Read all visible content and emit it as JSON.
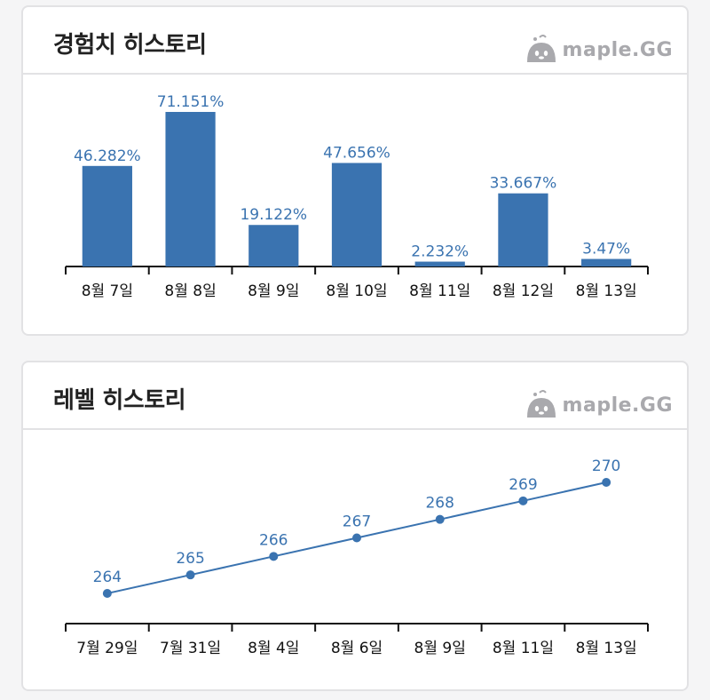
{
  "brand": {
    "name": "maple.GG",
    "icon": "slime-logo-icon"
  },
  "colors": {
    "bar": "#3a73b0",
    "line": "#3a73b0",
    "label": "#3a73b0",
    "axis": "#111111"
  },
  "exp_card": {
    "title": "경험치 히스토리"
  },
  "level_card": {
    "title": "레벨 히스토리"
  },
  "chart_data": [
    {
      "type": "bar",
      "title": "경험치 히스토리",
      "categories": [
        "8월 7일",
        "8월 8일",
        "8월 9일",
        "8월 10일",
        "8월 11일",
        "8월 12일",
        "8월 13일"
      ],
      "values": [
        46.282,
        71.151,
        19.122,
        47.656,
        2.232,
        33.667,
        3.47
      ],
      "labels": [
        "46.282%",
        "71.151%",
        "19.122%",
        "47.656%",
        "2.232%",
        "33.667%",
        "3.47%"
      ],
      "ylim": [
        0,
        71.151
      ],
      "grid": false
    },
    {
      "type": "line",
      "title": "레벨 히스토리",
      "categories": [
        "7월 29일",
        "7월 31일",
        "8월 4일",
        "8월 6일",
        "8월 9일",
        "8월 11일",
        "8월 13일"
      ],
      "values": [
        264,
        265,
        266,
        267,
        268,
        269,
        270
      ],
      "ylim": [
        262,
        270
      ],
      "grid": false
    }
  ]
}
